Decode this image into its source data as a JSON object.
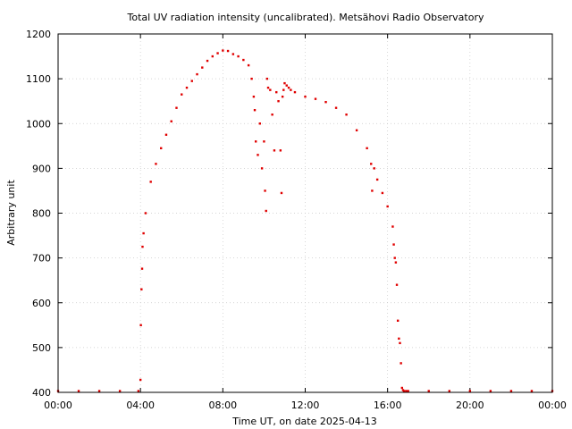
{
  "chart_data": {
    "type": "scatter",
    "title": "Total UV radiation intensity (uncalibrated). Metsähovi Radio Observatory",
    "xlabel": "Time UT, on date 2025-04-13",
    "ylabel": "Arbitrary unit",
    "xlim": [
      0,
      24
    ],
    "ylim": [
      400,
      1200
    ],
    "xticks": [
      0,
      4,
      8,
      12,
      16,
      20,
      24
    ],
    "xtick_labels": [
      "00:00",
      "04:00",
      "08:00",
      "12:00",
      "16:00",
      "20:00",
      "00:00"
    ],
    "yticks": [
      400,
      500,
      600,
      700,
      800,
      900,
      1000,
      1100,
      1200
    ],
    "ytick_labels": [
      "400",
      "500",
      "600",
      "700",
      "800",
      "900",
      "1000",
      "1100",
      "1200"
    ],
    "grid": true,
    "marker_color": "#e00000",
    "series": [
      {
        "x": [
          0.0,
          1.0,
          2.0,
          3.0,
          3.9,
          4.0,
          4.02,
          4.05,
          4.08,
          4.1,
          4.15,
          4.25,
          4.5,
          4.75,
          5.0,
          5.25,
          5.5,
          5.75,
          6.0,
          6.25,
          6.5,
          6.75,
          7.0,
          7.25,
          7.5,
          7.75,
          8.0,
          8.25,
          8.5,
          8.75,
          9.0,
          9.25,
          9.4,
          9.5,
          9.55,
          9.6,
          9.7,
          9.8,
          9.9,
          10.0,
          10.05,
          10.1,
          10.15,
          10.2,
          10.3,
          10.4,
          10.5,
          10.6,
          10.7,
          10.8,
          10.85,
          10.9,
          10.95,
          11.0,
          11.1,
          11.2,
          11.3,
          11.5,
          12.0,
          12.5,
          13.0,
          13.5,
          14.0,
          14.5,
          15.0,
          15.2,
          15.25,
          15.35,
          15.5,
          15.75,
          16.0,
          16.25,
          16.3,
          16.35,
          16.4,
          16.45,
          16.5,
          16.55,
          16.6,
          16.65,
          16.7,
          16.75,
          16.8,
          16.9,
          17.0,
          18.0,
          19.0,
          20.0,
          21.0,
          22.0,
          23.0,
          24.0
        ],
        "y": [
          403,
          403,
          403,
          403,
          403,
          428,
          550,
          630,
          676,
          725,
          755,
          800,
          870,
          910,
          945,
          975,
          1005,
          1035,
          1065,
          1080,
          1095,
          1110,
          1125,
          1140,
          1150,
          1157,
          1163,
          1162,
          1155,
          1150,
          1142,
          1130,
          1100,
          1060,
          1030,
          960,
          930,
          1000,
          900,
          960,
          850,
          805,
          1100,
          1080,
          1075,
          1020,
          940,
          1070,
          1050,
          940,
          845,
          1060,
          1075,
          1090,
          1085,
          1080,
          1075,
          1070,
          1060,
          1055,
          1048,
          1035,
          1020,
          985,
          945,
          910,
          850,
          900,
          875,
          845,
          815,
          770,
          730,
          700,
          690,
          640,
          560,
          520,
          510,
          465,
          410,
          405,
          403,
          403,
          403,
          403,
          403,
          403,
          403,
          403,
          403,
          403
        ]
      }
    ]
  }
}
